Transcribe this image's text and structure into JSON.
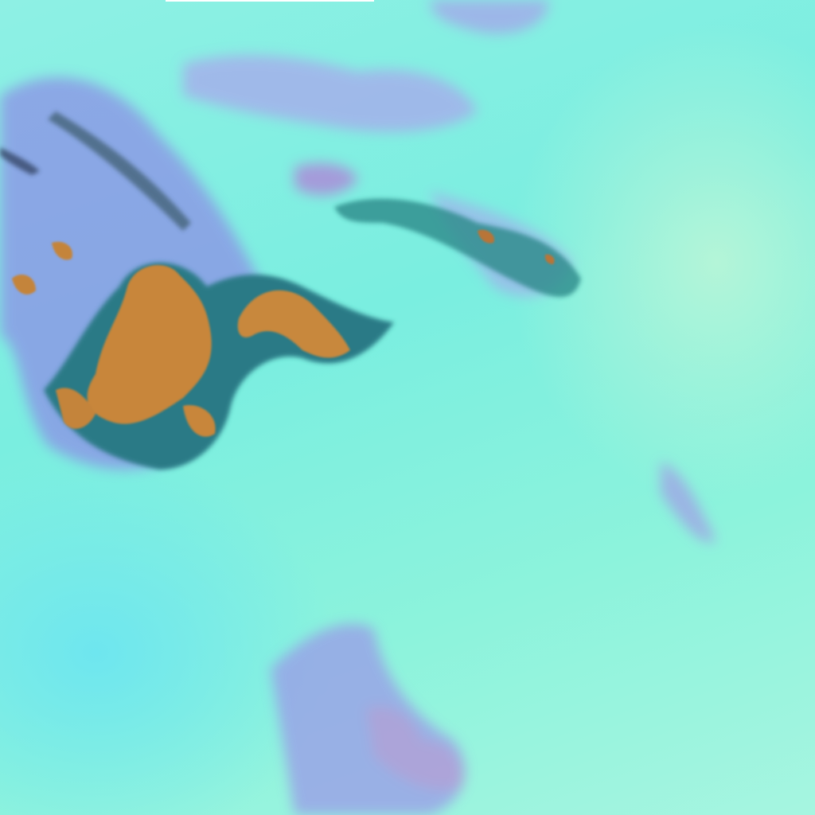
{
  "image": {
    "kind": "false-color satellite cloud imagery",
    "colors": {
      "background": "#7ff0e0",
      "high_cloud": "#9a9ee8",
      "convective_core": "#c8883a",
      "core_edge": "#1e6a7a",
      "dark_streak": "#2a4a60"
    }
  }
}
